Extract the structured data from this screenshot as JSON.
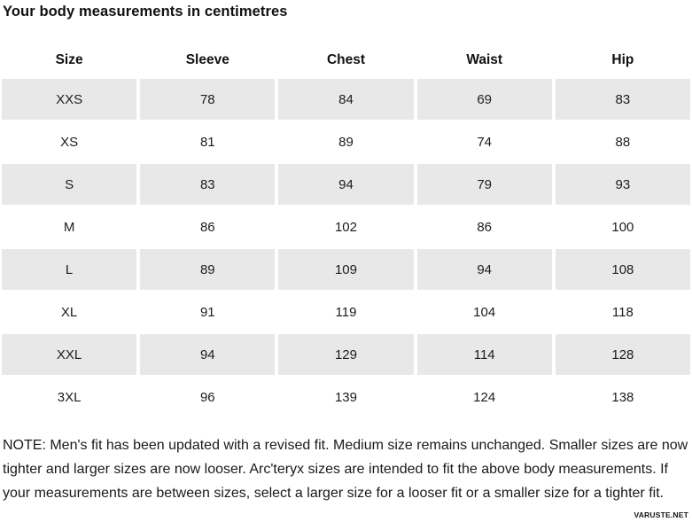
{
  "title": "Your body measurements in centimetres",
  "table": {
    "columns": [
      "Size",
      "Sleeve",
      "Chest",
      "Waist",
      "Hip"
    ],
    "rows": [
      {
        "size": "XXS",
        "values": [
          "78",
          "84",
          "69",
          "83"
        ]
      },
      {
        "size": "XS",
        "values": [
          "81",
          "89",
          "74",
          "88"
        ]
      },
      {
        "size": "S",
        "values": [
          "83",
          "94",
          "79",
          "93"
        ]
      },
      {
        "size": "M",
        "values": [
          "86",
          "102",
          "86",
          "100"
        ]
      },
      {
        "size": "L",
        "values": [
          "89",
          "109",
          "94",
          "108"
        ]
      },
      {
        "size": "XL",
        "values": [
          "91",
          "119",
          "104",
          "118"
        ]
      },
      {
        "size": "XXL",
        "values": [
          "94",
          "129",
          "114",
          "128"
        ]
      },
      {
        "size": "3XL",
        "values": [
          "96",
          "139",
          "124",
          "138"
        ]
      }
    ]
  },
  "note": "NOTE: Men's fit has been updated with a revised fit. Medium size remains unchanged. Smaller sizes are now tighter and larger sizes are now looser. Arc'teryx sizes are intended to fit the above body measurements. If your measurements are between sizes, select a larger size for a looser fit or a smaller size for a tighter fit.",
  "watermark": "VARUSTE.NET",
  "colors": {
    "stripe": "#e8e8e8",
    "text": "#1a1a1a"
  }
}
